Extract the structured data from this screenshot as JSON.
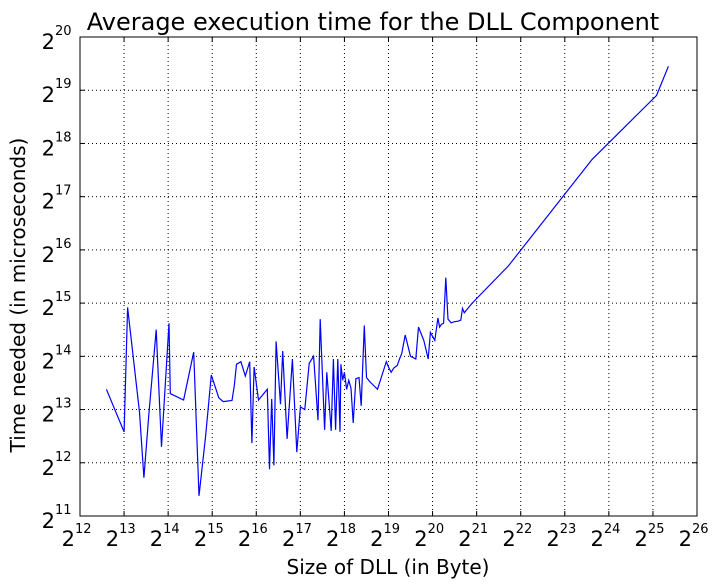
{
  "chart_data": {
    "type": "line",
    "title": "Average execution time for the DLL Component",
    "xlabel": "Size of DLL (in Byte)",
    "ylabel": "Time needed (in microseconds)",
    "xscale": "log2",
    "yscale": "log2",
    "xlim_exp": [
      12,
      26
    ],
    "ylim_exp": [
      11,
      20
    ],
    "xticks": [
      {
        "base": "2",
        "exp": "12"
      },
      {
        "base": "2",
        "exp": "13"
      },
      {
        "base": "2",
        "exp": "14"
      },
      {
        "base": "2",
        "exp": "15"
      },
      {
        "base": "2",
        "exp": "16"
      },
      {
        "base": "2",
        "exp": "17"
      },
      {
        "base": "2",
        "exp": "18"
      },
      {
        "base": "2",
        "exp": "19"
      },
      {
        "base": "2",
        "exp": "20"
      },
      {
        "base": "2",
        "exp": "21"
      },
      {
        "base": "2",
        "exp": "22"
      },
      {
        "base": "2",
        "exp": "23"
      },
      {
        "base": "2",
        "exp": "24"
      },
      {
        "base": "2",
        "exp": "25"
      },
      {
        "base": "2",
        "exp": "26"
      }
    ],
    "yticks": [
      {
        "base": "2",
        "exp": "11"
      },
      {
        "base": "2",
        "exp": "12"
      },
      {
        "base": "2",
        "exp": "13"
      },
      {
        "base": "2",
        "exp": "14"
      },
      {
        "base": "2",
        "exp": "15"
      },
      {
        "base": "2",
        "exp": "16"
      },
      {
        "base": "2",
        "exp": "17"
      },
      {
        "base": "2",
        "exp": "18"
      },
      {
        "base": "2",
        "exp": "19"
      },
      {
        "base": "2",
        "exp": "20"
      }
    ],
    "grid": true,
    "series_color": "#0000ff",
    "series": [
      {
        "x_exp": [
          12.6,
          13.0,
          13.08,
          13.35,
          13.45,
          13.56,
          13.73,
          13.85,
          14.02,
          14.05,
          14.35,
          14.58,
          14.7,
          14.85,
          14.98,
          15.15,
          15.25,
          15.45,
          15.5,
          15.55,
          15.65,
          15.75,
          15.85,
          15.9,
          15.95,
          16.05,
          16.25,
          16.3,
          16.35,
          16.4,
          16.45,
          16.55,
          16.6,
          16.7,
          16.82,
          16.92,
          17.0,
          17.1,
          17.2,
          17.3,
          17.4,
          17.45,
          17.55,
          17.6,
          17.7,
          17.75,
          17.8,
          17.85,
          17.9,
          17.92,
          17.96,
          18.0,
          18.05,
          18.1,
          18.15,
          18.2,
          18.26,
          18.33,
          18.38,
          18.45,
          18.5,
          18.58,
          18.75,
          18.95,
          19.0,
          19.06,
          19.12,
          19.2,
          19.25,
          19.3,
          19.38,
          19.5,
          19.55,
          19.62,
          19.68,
          19.8,
          19.9,
          19.95,
          20.05,
          20.12,
          20.16,
          20.2,
          20.25,
          20.3,
          20.35,
          20.42,
          20.5,
          20.58,
          20.64,
          20.68,
          20.72,
          20.9,
          21.72,
          23.62,
          25.08,
          25.35
        ],
        "y_exp": [
          13.38,
          12.58,
          14.92,
          12.95,
          11.72,
          12.9,
          14.5,
          12.3,
          14.62,
          13.3,
          13.18,
          14.08,
          11.38,
          12.5,
          13.65,
          13.22,
          13.15,
          13.17,
          13.45,
          13.85,
          13.9,
          13.63,
          13.9,
          12.37,
          13.8,
          13.18,
          13.38,
          11.88,
          13.2,
          11.95,
          14.28,
          13.1,
          14.1,
          12.45,
          13.95,
          12.2,
          13.05,
          13.0,
          13.87,
          14.0,
          12.8,
          14.7,
          12.62,
          13.7,
          12.6,
          13.95,
          12.62,
          13.95,
          12.58,
          13.85,
          13.55,
          13.7,
          13.38,
          13.55,
          13.4,
          12.75,
          13.58,
          13.6,
          13.07,
          14.58,
          13.6,
          13.52,
          13.38,
          13.9,
          13.8,
          13.7,
          13.78,
          13.83,
          13.95,
          14.05,
          14.4,
          14.0,
          13.98,
          13.95,
          14.55,
          14.3,
          13.95,
          14.45,
          14.3,
          14.72,
          14.55,
          14.6,
          14.62,
          15.48,
          14.7,
          14.63,
          14.65,
          14.66,
          14.68,
          14.9,
          14.82,
          15.0,
          15.7,
          17.7,
          18.9,
          19.45
        ]
      }
    ]
  }
}
